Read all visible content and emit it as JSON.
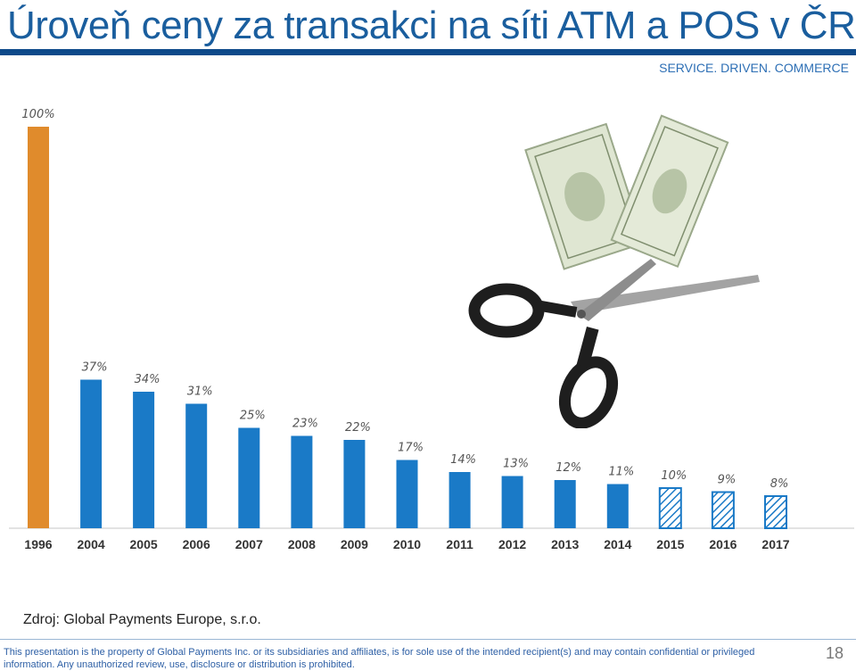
{
  "header": {
    "title": "Úroveň ceny za transakci na síti ATM a POS v ČR",
    "tagline": "SERVICE. DRIVEN. COMMERCE"
  },
  "chart_data": {
    "type": "bar",
    "categories": [
      "1996",
      "2004",
      "2005",
      "2006",
      "2007",
      "2008",
      "2009",
      "2010",
      "2011",
      "2012",
      "2013",
      "2014",
      "2015",
      "2016",
      "2017"
    ],
    "values": [
      100,
      37,
      34,
      31,
      25,
      23,
      22,
      17,
      14,
      13,
      12,
      11,
      10,
      9,
      8
    ],
    "labels": [
      "100%",
      "37%",
      "34%",
      "31%",
      "25%",
      "23%",
      "22%",
      "17%",
      "14%",
      "13%",
      "12%",
      "11%",
      "10%",
      "9%",
      "8%"
    ],
    "styles": [
      "highlight",
      "solid",
      "solid",
      "solid",
      "solid",
      "solid",
      "solid",
      "solid",
      "solid",
      "solid",
      "solid",
      "solid",
      "hatched",
      "hatched",
      "hatched"
    ],
    "ylim": [
      0,
      100
    ],
    "grid": false,
    "colors": {
      "highlight": "#e08b2c",
      "solid": "#1a7ac7",
      "hatched": "#1a7ac7"
    }
  },
  "illustration": {
    "icon": "scissors-cutting-dollar-icon"
  },
  "source": "Zdroj: Global Payments Europe, s.r.o.",
  "footer": {
    "disclaimer": "This presentation is the property of Global Payments Inc. or its subsidiaries and affiliates, is for sole use of the intended recipient(s) and may contain confidential or privileged information. Any unauthorized review, use, disclosure or distribution is prohibited.",
    "page": "18"
  }
}
